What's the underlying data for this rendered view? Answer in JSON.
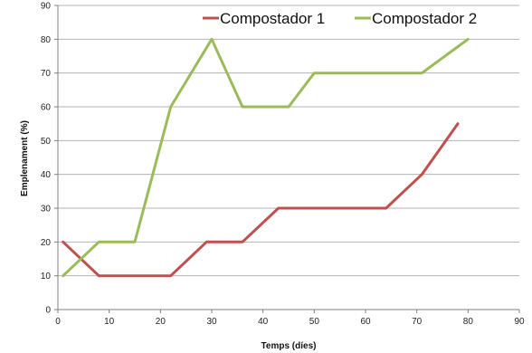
{
  "chart_data": {
    "type": "line",
    "title": "",
    "xlabel": "Temps (díes)",
    "ylabel": "Emplenament (%)",
    "xlim": [
      0,
      90
    ],
    "ylim": [
      0,
      90
    ],
    "x_ticks": [
      0,
      10,
      20,
      30,
      40,
      50,
      60,
      70,
      80,
      90
    ],
    "y_ticks": [
      0,
      10,
      20,
      30,
      40,
      50,
      60,
      70,
      80,
      90
    ],
    "grid": "horizontal",
    "legend_position": "top-right",
    "series": [
      {
        "name": "Compostador 1",
        "color": "#c0504d",
        "points": [
          [
            1,
            20
          ],
          [
            8,
            10
          ],
          [
            22,
            10
          ],
          [
            29,
            20
          ],
          [
            36,
            20
          ],
          [
            43,
            30
          ],
          [
            64,
            30
          ],
          [
            71,
            40
          ],
          [
            78,
            55
          ]
        ]
      },
      {
        "name": "Compostador 2",
        "color": "#9bbb59",
        "points": [
          [
            1,
            10
          ],
          [
            8,
            20
          ],
          [
            15,
            20
          ],
          [
            22,
            60
          ],
          [
            30,
            80
          ],
          [
            36,
            60
          ],
          [
            45,
            60
          ],
          [
            50,
            70
          ],
          [
            71,
            70
          ],
          [
            80,
            80
          ]
        ]
      }
    ]
  }
}
